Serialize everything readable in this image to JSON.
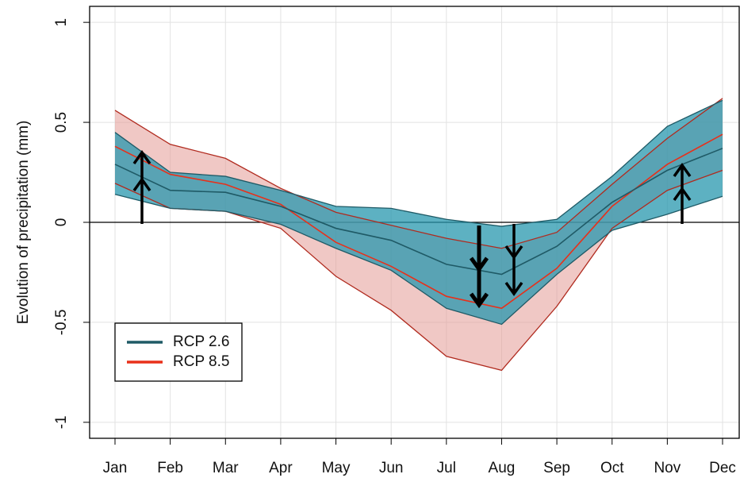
{
  "chart_data": {
    "type": "ribbon_line",
    "y_label": "Evolution of precipitation (mm)",
    "categories": [
      "Jan",
      "Feb",
      "Mar",
      "Apr",
      "May",
      "Jun",
      "Jul",
      "Aug",
      "Sep",
      "Oct",
      "Nov",
      "Dec"
    ],
    "ylim": [
      -1.08,
      1.08
    ],
    "yticks": [
      -1,
      -0.5,
      0,
      0.5,
      1
    ],
    "grid": true,
    "legend_position": "bottom-left",
    "series": [
      {
        "name": "RCP 8.5",
        "color": "#e8301a",
        "band_color": "#e39a96",
        "edge_color": "#b02a1e",
        "values": [
          0.38,
          0.24,
          0.19,
          0.09,
          -0.1,
          -0.22,
          -0.37,
          -0.43,
          -0.23,
          0.08,
          0.29,
          0.44
        ],
        "lower": [
          0.195,
          0.07,
          0.055,
          -0.03,
          -0.27,
          -0.44,
          -0.67,
          -0.74,
          -0.42,
          -0.03,
          0.16,
          0.26
        ],
        "upper": [
          0.56,
          0.39,
          0.32,
          0.17,
          0.05,
          -0.015,
          -0.08,
          -0.13,
          -0.05,
          0.19,
          0.42,
          0.62
        ]
      },
      {
        "name": "RCP 2.6",
        "color": "#1f5a66",
        "band_color": "#2797ad",
        "edge_color": "#1f5a66",
        "values": [
          0.29,
          0.16,
          0.15,
          0.08,
          -0.03,
          -0.09,
          -0.21,
          -0.26,
          -0.12,
          0.1,
          0.26,
          0.37
        ],
        "lower": [
          0.14,
          0.07,
          0.055,
          -0.01,
          -0.13,
          -0.24,
          -0.43,
          -0.51,
          -0.26,
          -0.04,
          0.04,
          0.13
        ],
        "upper": [
          0.45,
          0.25,
          0.23,
          0.16,
          0.08,
          0.07,
          0.015,
          -0.02,
          0.015,
          0.23,
          0.48,
          0.61
        ]
      }
    ]
  }
}
